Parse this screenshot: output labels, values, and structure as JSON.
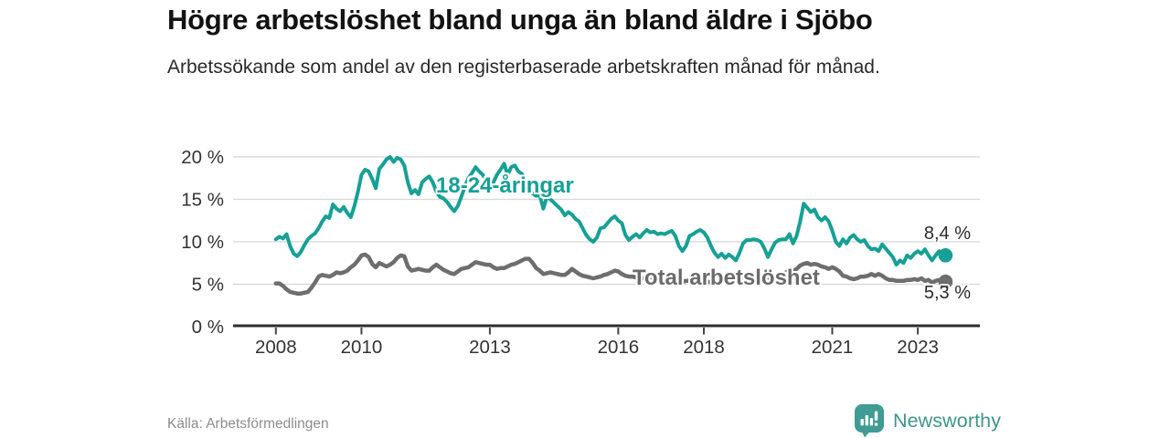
{
  "header": {
    "title": "Högre arbetslöshet bland unga än bland äldre i Sjöbo",
    "subtitle": "Arbetssökande som andel av den registerbaserade arbetskraften månad för månad."
  },
  "footer": {
    "source": "Källa: Arbetsförmedlingen",
    "brand": "Newsworthy",
    "brand_color": "#3f9b93"
  },
  "chart_data": {
    "type": "line",
    "title": "Högre arbetslöshet bland unga än bland äldre i Sjöbo",
    "subtitle": "Arbetssökande som andel av den registerbaserade arbetskraften månad för månad.",
    "x_unit": "month",
    "x_start_year": 2008,
    "x_end": "2023-08",
    "xlim": [
      2007.0,
      2024.45
    ],
    "ylim": [
      0,
      21.5
    ],
    "grid": "horizontal",
    "grid_color": "#d9d9d9",
    "axis_color": "#2e2e2e",
    "tick_color": "#444444",
    "label_color": "#333333",
    "y_tick_values": [
      0,
      5,
      10,
      15,
      20
    ],
    "y_tick_labels": [
      "0 %",
      "5 %",
      "10 %",
      "15 %",
      "20 %"
    ],
    "x_tick_values": [
      2008,
      2010,
      2013,
      2016,
      2018,
      2021,
      2023
    ],
    "x_tick_labels": [
      "2008",
      "2010",
      "2013",
      "2016",
      "2018",
      "2021",
      "2023"
    ],
    "legend_position": "inline-labels",
    "series": [
      {
        "name": "18-24-åringar",
        "label": "18-24-åringar",
        "color": "#17a096",
        "end_label": "8,4 %",
        "end_value": 8.4,
        "line_width": 4,
        "values": [
          10.3,
          10.6,
          10.4,
          10.9,
          9.5,
          8.6,
          8.3,
          8.8,
          9.6,
          10.3,
          10.7,
          11.0,
          11.6,
          12.4,
          13.0,
          12.8,
          14.4,
          13.9,
          13.6,
          14.1,
          13.4,
          12.9,
          14.2,
          15.9,
          17.9,
          18.5,
          18.3,
          17.4,
          16.3,
          18.6,
          19.1,
          19.7,
          20.0,
          19.4,
          19.9,
          19.7,
          19.0,
          17.0,
          15.7,
          16.1,
          15.6,
          17.0,
          17.4,
          17.7,
          17.0,
          15.9,
          15.3,
          15.1,
          14.7,
          14.1,
          13.6,
          14.2,
          15.3,
          16.5,
          17.5,
          18.1,
          18.8,
          18.3,
          17.9,
          17.2,
          16.2,
          17.0,
          17.9,
          18.5,
          19.2,
          17.9,
          18.8,
          19.0,
          18.3,
          18.0,
          17.3,
          16.1,
          15.7,
          15.4,
          15.5,
          13.9,
          15.3,
          15.0,
          14.6,
          14.2,
          13.8,
          13.1,
          13.5,
          13.2,
          12.7,
          12.4,
          11.6,
          10.8,
          10.3,
          10.0,
          10.5,
          11.6,
          11.7,
          12.2,
          12.7,
          13.0,
          12.5,
          12.2,
          10.8,
          10.2,
          10.6,
          10.9,
          10.5,
          11.0,
          11.4,
          11.1,
          11.2,
          10.9,
          11.0,
          10.9,
          11.1,
          11.3,
          10.7,
          9.5,
          8.9,
          9.5,
          10.7,
          10.9,
          11.2,
          11.4,
          11.1,
          10.5,
          9.5,
          8.7,
          8.2,
          8.6,
          8.1,
          8.5,
          8.2,
          7.8,
          8.7,
          9.8,
          10.2,
          10.2,
          10.3,
          10.2,
          10.0,
          9.2,
          8.2,
          9.1,
          9.9,
          10.2,
          10.3,
          10.3,
          10.9,
          9.8,
          10.7,
          12.4,
          14.5,
          14.0,
          13.5,
          13.8,
          12.9,
          12.5,
          12.9,
          12.4,
          11.3,
          10.0,
          9.5,
          10.3,
          9.8,
          10.5,
          10.8,
          10.3,
          10.0,
          10.2,
          9.5,
          9.1,
          9.2,
          8.9,
          9.7,
          9.2,
          8.7,
          8.2,
          7.3,
          7.8,
          7.5,
          8.4,
          8.1,
          8.6,
          8.9,
          8.6,
          9.1,
          8.4,
          7.8,
          8.4,
          8.9,
          8.4
        ]
      },
      {
        "name": "Total arbetslöshet",
        "label": "Total arbetslöshet",
        "color": "#6e6e6e",
        "end_label": "5,3 %",
        "end_value": 5.3,
        "line_width": 4.5,
        "values": [
          5.1,
          5.1,
          4.8,
          4.4,
          4.1,
          4.0,
          3.9,
          3.9,
          4.0,
          4.1,
          4.6,
          5.2,
          5.9,
          6.1,
          6.0,
          5.9,
          6.1,
          6.4,
          6.3,
          6.4,
          6.6,
          7.0,
          7.3,
          7.8,
          8.4,
          8.5,
          8.2,
          7.4,
          7.0,
          7.5,
          7.3,
          7.1,
          7.3,
          7.6,
          8.1,
          8.4,
          8.3,
          7.1,
          6.6,
          6.7,
          6.8,
          6.7,
          6.6,
          6.6,
          7.0,
          7.3,
          7.0,
          6.7,
          6.5,
          6.3,
          6.2,
          6.5,
          6.8,
          6.9,
          7.0,
          7.3,
          7.6,
          7.5,
          7.4,
          7.3,
          7.3,
          7.0,
          6.8,
          6.9,
          6.9,
          7.1,
          7.3,
          7.4,
          7.6,
          7.8,
          8.0,
          8.0,
          7.5,
          6.9,
          6.6,
          6.2,
          6.3,
          6.4,
          6.3,
          6.2,
          6.1,
          6.1,
          6.4,
          6.8,
          6.5,
          6.2,
          6.0,
          5.9,
          5.8,
          5.7,
          5.8,
          5.9,
          6.1,
          6.2,
          6.4,
          6.6,
          6.5,
          6.2,
          6.0,
          5.9,
          5.9,
          5.8,
          5.7,
          5.7,
          5.8,
          5.8,
          5.7,
          5.6,
          5.6,
          5.5,
          5.5,
          5.4,
          5.4,
          5.3,
          5.3,
          5.4,
          5.4,
          5.5,
          5.4,
          5.4,
          5.3,
          5.3,
          5.2,
          5.2,
          5.1,
          5.2,
          5.2,
          5.3,
          5.2,
          5.2,
          5.3,
          5.4,
          5.4,
          5.5,
          5.5,
          5.6,
          5.6,
          5.5,
          5.6,
          5.7,
          5.8,
          6.0,
          6.2,
          6.4,
          6.6,
          6.5,
          6.8,
          7.2,
          7.4,
          7.5,
          7.3,
          7.4,
          7.3,
          7.1,
          7.0,
          6.8,
          7.0,
          6.8,
          6.5,
          6.0,
          5.9,
          5.7,
          5.6,
          5.7,
          5.9,
          5.9,
          6.0,
          6.2,
          6.0,
          6.2,
          6.0,
          5.7,
          5.5,
          5.5,
          5.4,
          5.4,
          5.4,
          5.5,
          5.5,
          5.6,
          5.5,
          5.7,
          5.4,
          5.5,
          5.2,
          5.4,
          5.5,
          5.3
        ]
      }
    ]
  }
}
